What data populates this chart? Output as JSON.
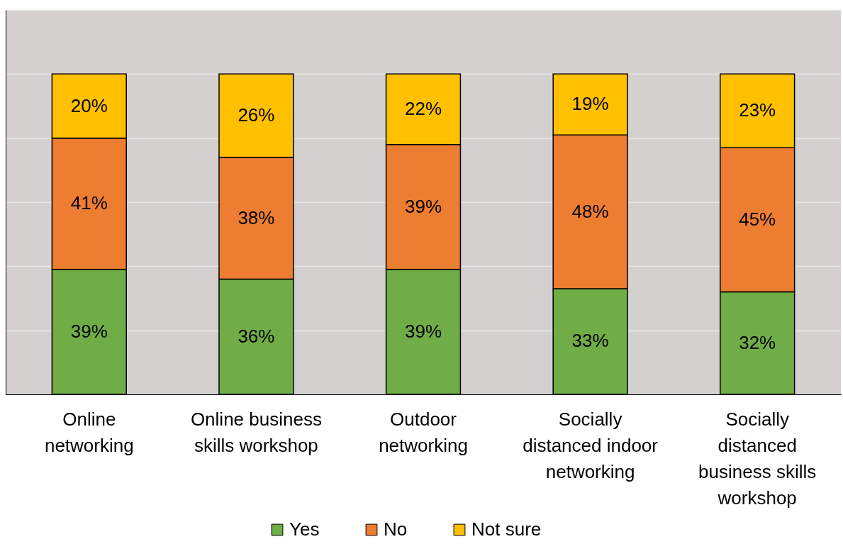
{
  "chart_data": {
    "type": "bar",
    "stacked": true,
    "grid": "y",
    "legend": "bottom",
    "tick_labels": "x",
    "categories": [
      "Online networking",
      "Online business skills workshop",
      "Outdoor networking",
      "Socially distanced indoor networking",
      "Socially distanced business skills workshop"
    ],
    "series": [
      {
        "name": "Yes",
        "color": "#70ad47",
        "values": [
          39,
          36,
          39,
          33,
          32
        ],
        "value_labels": [
          "39%",
          "36%",
          "39%",
          "33%",
          "32%"
        ]
      },
      {
        "name": "No",
        "color": "#ed7d31",
        "values": [
          41,
          38,
          39,
          48,
          45
        ],
        "value_labels": [
          "41%",
          "38%",
          "39%",
          "48%",
          "45%"
        ]
      },
      {
        "name": "Not sure",
        "color": "#ffc000",
        "values": [
          20,
          26,
          22,
          19,
          23
        ],
        "value_labels": [
          "20%",
          "26%",
          "22%",
          "19%",
          "23%"
        ]
      }
    ]
  }
}
